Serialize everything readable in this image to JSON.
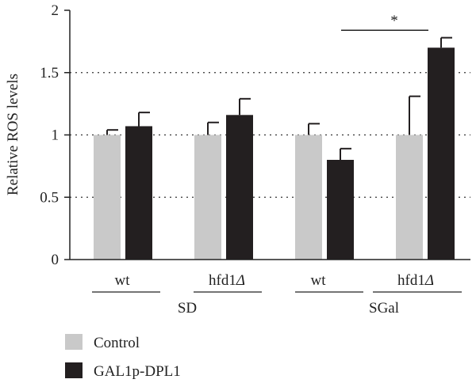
{
  "chart_data": {
    "type": "bar",
    "ylabel": "Relative ROS levels",
    "ylim": [
      0,
      2
    ],
    "yticks": [
      "0",
      "0.5",
      "1",
      "1.5",
      "2"
    ],
    "grid": "dotted horizontal at 0.5, 1, 1.5",
    "groups": [
      {
        "strain": "wt",
        "media": "SD"
      },
      {
        "strain": "hfd1",
        "strain_suffix": "Δ",
        "media": "SD"
      },
      {
        "strain": "wt",
        "media": "SGal"
      },
      {
        "strain": "hfd1",
        "strain_suffix": "Δ",
        "media": "SGal"
      }
    ],
    "media_labels": [
      "SD",
      "SGal"
    ],
    "series": [
      {
        "name": "Control",
        "color": "#c9c9c9",
        "values": [
          1.0,
          1.0,
          1.0,
          1.0
        ],
        "errors": [
          0.04,
          0.1,
          0.09,
          0.31
        ]
      },
      {
        "name": "GAL1p-DPL1",
        "color": "#231f20",
        "values": [
          1.07,
          1.16,
          0.8,
          1.7
        ],
        "errors": [
          0.11,
          0.13,
          0.09,
          0.08
        ]
      }
    ],
    "annotations": [
      {
        "text": "*",
        "from_group": 2,
        "to_group": 3,
        "y": 1.84
      }
    ],
    "legend": {
      "position": "bottom-left"
    }
  }
}
